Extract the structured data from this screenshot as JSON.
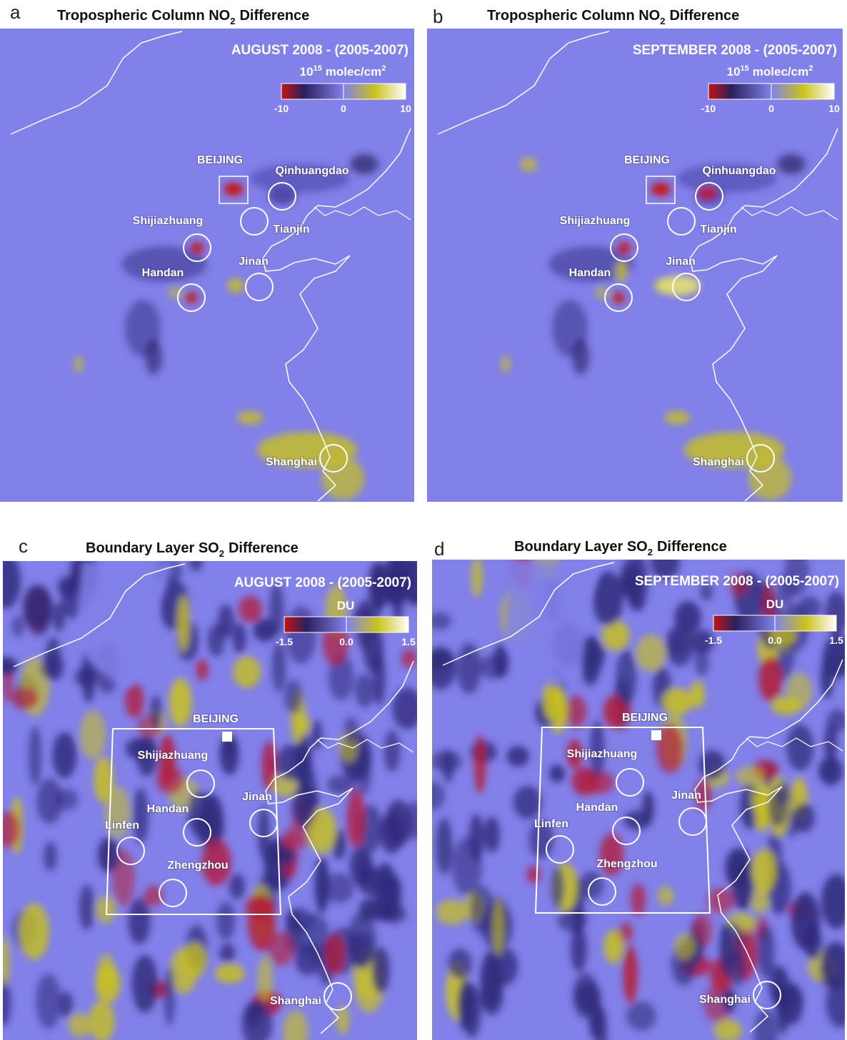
{
  "panels": [
    {
      "label": "a",
      "title": {
        "text": "Tropospheric Column NO",
        "subscript": "2",
        "suffix": "Difference"
      },
      "period": "AUGUST 2008 - (2005-2007)",
      "unit": {
        "base": "10",
        "exponent": "15",
        "text": "molec/cm",
        "text_exponent": "2"
      },
      "clim": [
        -10,
        10
      ],
      "cticks": [
        -10,
        0,
        10
      ],
      "cities": [
        "BEIJING",
        "Qinhuangdao",
        "Tianjin",
        "Shijiazhuang",
        "Handan",
        "Jinan",
        "Shanghai"
      ]
    },
    {
      "label": "b",
      "title": {
        "text": "Tropospheric Column NO",
        "subscript": "2",
        "suffix": "Difference"
      },
      "period": "SEPTEMBER 2008 - (2005-2007)",
      "unit": {
        "base": "10",
        "exponent": "15",
        "text": "molec/cm",
        "text_exponent": "2"
      },
      "clim": [
        -10,
        10
      ],
      "cticks": [
        -10,
        0,
        10
      ],
      "cities": [
        "BEIJING",
        "Qinhuangdao",
        "Tianjin",
        "Shijiazhuang",
        "Handan",
        "Jinan",
        "Shanghai"
      ]
    },
    {
      "label": "c",
      "title": {
        "text": "Boundary Layer SO",
        "subscript": "2",
        "suffix": "Difference"
      },
      "period": "AUGUST 2008 - (2005-2007)",
      "unit": {
        "text": "DU"
      },
      "clim": [
        -1.5,
        1.5
      ],
      "cticks": [
        -1.5,
        {
          "value": 0,
          "label": "0.0"
        },
        1.5
      ],
      "cities": [
        "BEIJING",
        "Shijiazhuang",
        "Handan",
        "Jinan",
        "Linfen",
        "Zhengzhou",
        "Shanghai"
      ]
    },
    {
      "label": "d",
      "title": {
        "text": "Boundary Layer SO",
        "subscript": "2",
        "suffix": "Difference"
      },
      "period": "SEPTEMBER 2008 - (2005-2007)",
      "unit": {
        "text": "DU"
      },
      "clim": [
        -1.5,
        1.5
      ],
      "cticks": [
        -1.5,
        {
          "value": 0,
          "label": "0.0"
        },
        1.5
      ],
      "cities": [
        "BEIJING",
        "Shijiazhuang",
        "Handan",
        "Jinan",
        "Linfen",
        "Zhengzhou",
        "Shanghai"
      ]
    }
  ]
}
